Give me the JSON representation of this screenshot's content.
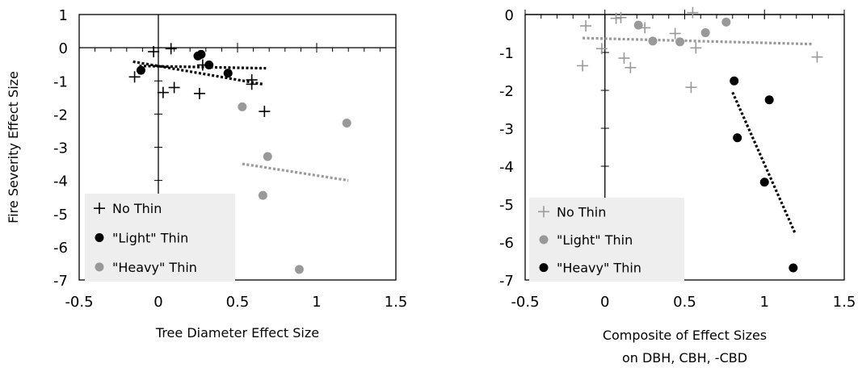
{
  "chart_data": [
    {
      "type": "scatter",
      "xlim": [
        -0.5,
        1.5
      ],
      "ylim": [
        -7,
        1
      ],
      "x_ticks": [
        "-0.5",
        "0",
        "0.5",
        "1",
        "1.5"
      ],
      "y_ticks": [
        "1",
        "0",
        "-1",
        "-2",
        "-3",
        "-4",
        "-5",
        "-6",
        "-7"
      ],
      "xlabel_lines": [
        "Tree Diameter Effect Size"
      ],
      "ylabel": "Fire Severity Effect Size",
      "legend": "bottom-left",
      "series": [
        {
          "name": "No Thin",
          "marker": "plus",
          "color": "#000000",
          "points": [
            [
              -0.03,
              -0.12
            ],
            [
              0.08,
              -0.03
            ],
            [
              -0.15,
              -0.88
            ],
            [
              0.03,
              -1.35
            ],
            [
              0.1,
              -1.2
            ],
            [
              0.26,
              -1.38
            ],
            [
              0.28,
              -0.52
            ],
            [
              0.59,
              -0.97
            ],
            [
              0.59,
              -1.1
            ],
            [
              0.67,
              -1.92
            ]
          ]
        },
        {
          "name": "\"Light\" Thin",
          "marker": "circle",
          "color": "#000000",
          "points": [
            [
              -0.11,
              -0.68
            ],
            [
              0.25,
              -0.25
            ],
            [
              0.27,
              -0.2
            ],
            [
              0.32,
              -0.52
            ],
            [
              0.44,
              -0.77
            ]
          ]
        },
        {
          "name": "\"Heavy\" Thin",
          "marker": "circle",
          "color": "#999999",
          "points": [
            [
              0.53,
              -1.78
            ],
            [
              0.69,
              -3.28
            ],
            [
              0.66,
              -4.45
            ],
            [
              0.89,
              -6.68
            ],
            [
              1.19,
              -2.27
            ]
          ]
        }
      ],
      "trendlines": [
        {
          "series": "No Thin",
          "color": "#000000",
          "from": [
            -0.16,
            -0.42
          ],
          "to": [
            0.66,
            -1.1
          ]
        },
        {
          "series": "\"Light\" Thin",
          "color": "#000000",
          "from": [
            -0.12,
            -0.55
          ],
          "to": [
            0.68,
            -0.62
          ]
        },
        {
          "series": "\"Heavy\" Thin",
          "color": "#999999",
          "from": [
            0.53,
            -3.5
          ],
          "to": [
            1.2,
            -4.0
          ]
        }
      ]
    },
    {
      "type": "scatter",
      "xlim": [
        -0.5,
        1.5
      ],
      "ylim": [
        -7,
        0
      ],
      "x_ticks": [
        "-0.5",
        "0",
        "0.5",
        "1",
        "1.5"
      ],
      "y_ticks": [
        "0",
        "-1",
        "-2",
        "-3",
        "-4",
        "-5",
        "-6",
        "-7"
      ],
      "xlabel_lines": [
        "Composite of Effect Sizes",
        "on DBH, CBH, -CBD"
      ],
      "ylabel": "",
      "legend": "bottom-left",
      "series": [
        {
          "name": "No Thin",
          "marker": "plus",
          "color": "#999999",
          "points": [
            [
              0.07,
              -0.1
            ],
            [
              0.1,
              -0.08
            ],
            [
              0.55,
              0.05
            ],
            [
              -0.12,
              -0.3
            ],
            [
              0.25,
              -0.35
            ],
            [
              0.44,
              -0.5
            ],
            [
              -0.02,
              -0.9
            ],
            [
              -0.14,
              -1.35
            ],
            [
              0.12,
              -1.15
            ],
            [
              0.16,
              -1.4
            ],
            [
              0.57,
              -0.88
            ],
            [
              0.54,
              -1.92
            ],
            [
              1.33,
              -1.12
            ]
          ]
        },
        {
          "name": "\"Light\" Thin",
          "marker": "circle",
          "color": "#999999",
          "points": [
            [
              0.21,
              -0.28
            ],
            [
              0.3,
              -0.7
            ],
            [
              0.47,
              -0.72
            ],
            [
              0.63,
              -0.48
            ],
            [
              0.76,
              -0.2
            ]
          ]
        },
        {
          "name": "\"Heavy\" Thin",
          "marker": "circle",
          "color": "#000000",
          "points": [
            [
              0.81,
              -1.75
            ],
            [
              0.83,
              -3.25
            ],
            [
              1.0,
              -4.42
            ],
            [
              1.03,
              -2.25
            ],
            [
              1.18,
              -6.68
            ]
          ]
        }
      ],
      "trendlines": [
        {
          "series": "No Thin",
          "color": "#999999",
          "from": [
            -0.14,
            -0.62
          ],
          "to": [
            1.3,
            -0.78
          ]
        },
        {
          "series": "\"Heavy\" Thin",
          "color": "#000000",
          "from": [
            0.8,
            -2.05
          ],
          "to": [
            1.19,
            -5.75
          ]
        }
      ]
    }
  ]
}
